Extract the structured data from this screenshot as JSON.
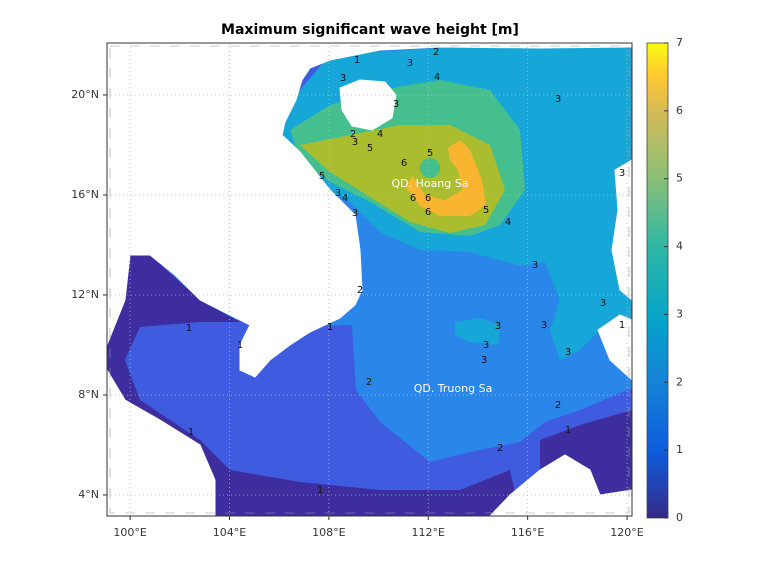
{
  "title": "Maximum significant wave height [m]",
  "map": {
    "xlim": [
      99.07,
      120.2
    ],
    "ylim": [
      3.16,
      22.08
    ],
    "xticks": [
      {
        "value": 100,
        "label": "100°E"
      },
      {
        "value": 104,
        "label": "104°E"
      },
      {
        "value": 108,
        "label": "108°E"
      },
      {
        "value": 112,
        "label": "112°E"
      },
      {
        "value": 116,
        "label": "116°E"
      },
      {
        "value": 120,
        "label": "120°E"
      }
    ],
    "yticks": [
      {
        "value": 4,
        "label": "4°N"
      },
      {
        "value": 8,
        "label": "8°N"
      },
      {
        "value": 12,
        "label": "12°N"
      },
      {
        "value": 16,
        "label": "16°N"
      },
      {
        "value": 20,
        "label": "20°N"
      }
    ],
    "grid": true
  },
  "colorbar": {
    "lim": [
      0,
      7
    ],
    "ticks": [
      0,
      1,
      2,
      3,
      4,
      5,
      6,
      7
    ],
    "band_colors": [
      "#3d2d9f",
      "#3f5ce0",
      "#2b86ea",
      "#16a6d8",
      "#45bf8e",
      "#a9bd2e",
      "#f9b430"
    ]
  },
  "places": [
    "QD. Hoang Sa",
    "QD. Truong Sa"
  ],
  "contour_labels": [
    1,
    3,
    3,
    2,
    4,
    3,
    3,
    2,
    3,
    5,
    4,
    5,
    6,
    6,
    6,
    6,
    5,
    5,
    4,
    3,
    4,
    3,
    3,
    3,
    3,
    3,
    3,
    3,
    3,
    3,
    2,
    2,
    2,
    2,
    1,
    1,
    1,
    1,
    1,
    1,
    1
  ]
}
